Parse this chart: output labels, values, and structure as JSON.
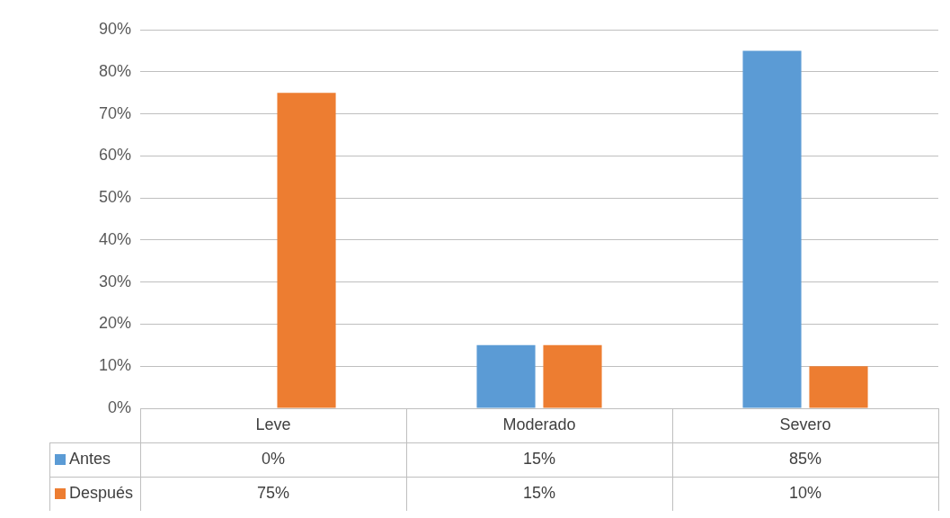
{
  "chart_data": {
    "type": "bar",
    "categories": [
      "Leve",
      "Moderado",
      "Severo"
    ],
    "series": [
      {
        "name": "Antes",
        "color": "#5b9bd5",
        "values": [
          0,
          15,
          85
        ],
        "value_labels": [
          "0%",
          "15%",
          "85%"
        ]
      },
      {
        "name": "Después",
        "color": "#ed7d31",
        "values": [
          75,
          15,
          10
        ],
        "value_labels": [
          "75%",
          "15%",
          "10%"
        ]
      }
    ],
    "ylim": [
      0,
      90
    ],
    "yticks": [
      {
        "value": 0,
        "label": "0%"
      },
      {
        "value": 10,
        "label": "10%"
      },
      {
        "value": 20,
        "label": "20%"
      },
      {
        "value": 30,
        "label": "30%"
      },
      {
        "value": 40,
        "label": "40%"
      },
      {
        "value": 50,
        "label": "50%"
      },
      {
        "value": 60,
        "label": "60%"
      },
      {
        "value": 70,
        "label": "70%"
      },
      {
        "value": 80,
        "label": "80%"
      },
      {
        "value": 90,
        "label": "90%"
      }
    ],
    "grid": "y",
    "legend": "bottom"
  }
}
